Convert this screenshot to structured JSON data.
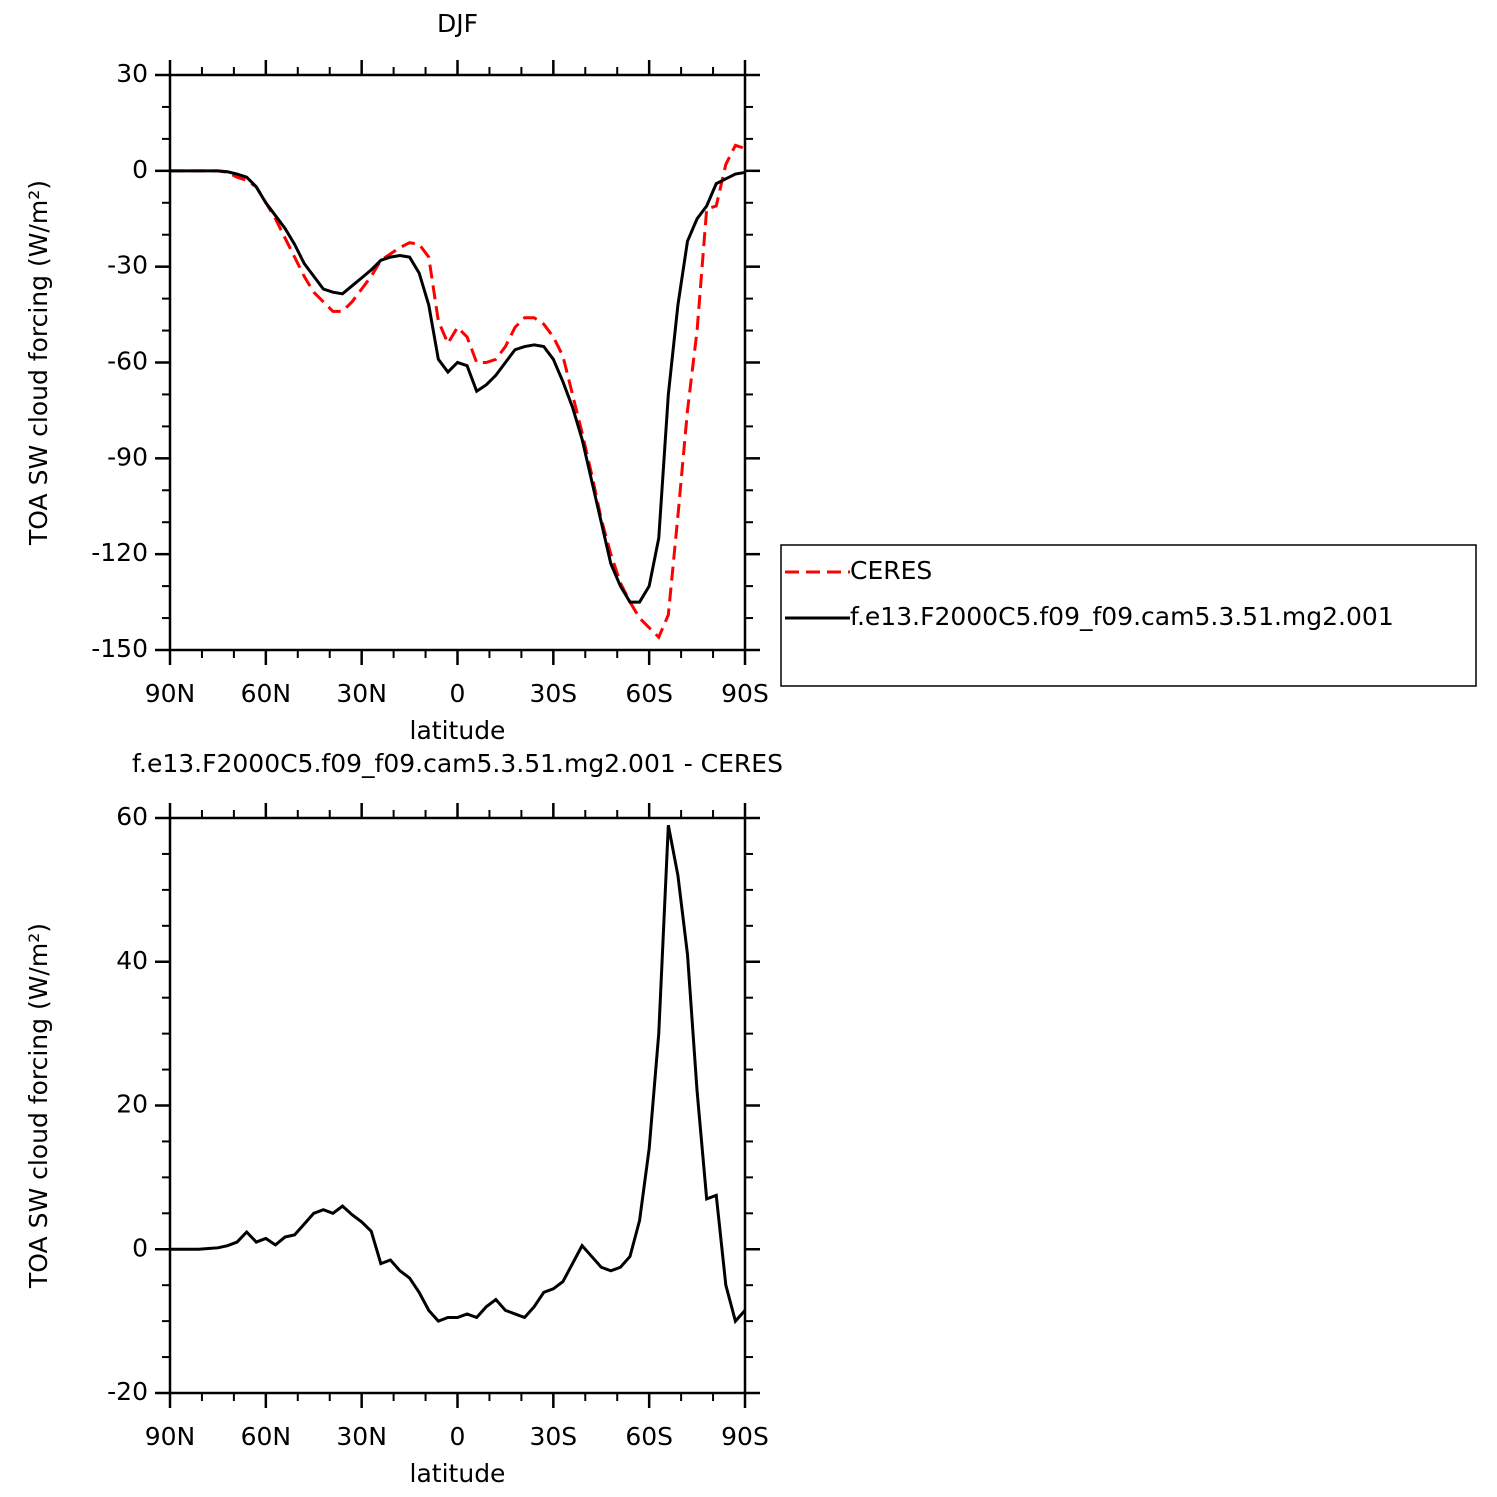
{
  "chart_data": [
    {
      "type": "line",
      "title": "DJF",
      "ylabel": "TOA SW cloud forcing (W/m²)",
      "xlabel": "latitude",
      "x": [
        90,
        87,
        84,
        81,
        78,
        75,
        72,
        69,
        66,
        63,
        60,
        57,
        54,
        51,
        48,
        45,
        42,
        39,
        36,
        33,
        30,
        27,
        24,
        21,
        18,
        15,
        12,
        9,
        6,
        3,
        0,
        -3,
        -6,
        -9,
        -12,
        -15,
        -18,
        -21,
        -24,
        -27,
        -30,
        -33,
        -36,
        -39,
        -42,
        -45,
        -48,
        -51,
        -54,
        -57,
        -60,
        -63,
        -66,
        -69,
        -72,
        -75,
        -78,
        -81,
        -84,
        -87,
        -90
      ],
      "series": [
        {
          "name": "CERES",
          "color": "#ff0000",
          "dash": true,
          "values": [
            0,
            0,
            0,
            0,
            0,
            0,
            -0.5,
            -2,
            -3,
            -5,
            -10,
            -15,
            -21,
            -27,
            -33,
            -38,
            -41,
            -44,
            -44,
            -41,
            -37,
            -33,
            -28,
            -26,
            -24,
            -22.5,
            -23,
            -27,
            -47,
            -54,
            -49,
            -52,
            -60,
            -60,
            -59,
            -55,
            -49,
            -46,
            -46,
            -48,
            -52,
            -58,
            -70,
            -82,
            -95,
            -109,
            -120,
            -129,
            -135,
            -140,
            -143,
            -146,
            -139,
            -108,
            -75,
            -50,
            -12,
            -11,
            2,
            8,
            7
          ]
        },
        {
          "name": "f.e13.F2000C5.f09_f09.cam5.3.51.mg2.001",
          "color": "#000000",
          "dash": false,
          "values": [
            0,
            0,
            0,
            0,
            0,
            0,
            -0.3,
            -1,
            -2,
            -5,
            -10,
            -14,
            -18,
            -23,
            -29,
            -33,
            -37,
            -38,
            -38.5,
            -36,
            -33.5,
            -31,
            -28,
            -27,
            -26.5,
            -27,
            -32,
            -42,
            -59,
            -63,
            -60,
            -61,
            -69,
            -67,
            -64,
            -60,
            -56,
            -55,
            -54.5,
            -55,
            -59,
            -66,
            -74,
            -84,
            -97,
            -110,
            -123,
            -130,
            -135,
            -135,
            -130,
            -115,
            -70,
            -42,
            -22,
            -15,
            -11,
            -4,
            -2.5,
            -1,
            -0.5
          ]
        }
      ],
      "xlim": [
        90,
        -90
      ],
      "xticks": [
        {
          "value": 90,
          "label": "90N"
        },
        {
          "value": 60,
          "label": "60N"
        },
        {
          "value": 30,
          "label": "30N"
        },
        0,
        {
          "value": -30,
          "label": "30S"
        },
        {
          "value": -60,
          "label": "60S"
        },
        {
          "value": -90,
          "label": "90S"
        }
      ],
      "ylim": [
        -150,
        30
      ],
      "yticks": [
        30,
        0,
        -30,
        -60,
        -90,
        -120,
        -150
      ],
      "legend": "right"
    },
    {
      "type": "line",
      "title": "f.e13.F2000C5.f09_f09.cam5.3.51.mg2.001 - CERES",
      "ylabel": "TOA SW cloud forcing (W/m²)",
      "xlabel": "latitude",
      "x": [
        90,
        87,
        84,
        81,
        78,
        75,
        72,
        69,
        66,
        63,
        60,
        57,
        54,
        51,
        48,
        45,
        42,
        39,
        36,
        33,
        30,
        27,
        24,
        21,
        18,
        15,
        12,
        9,
        6,
        3,
        0,
        -3,
        -6,
        -9,
        -12,
        -15,
        -18,
        -21,
        -24,
        -27,
        -30,
        -33,
        -36,
        -39,
        -42,
        -45,
        -48,
        -51,
        -54,
        -57,
        -60,
        -63,
        -66,
        -69,
        -72,
        -75,
        -78,
        -81,
        -84,
        -87,
        -90
      ],
      "values": [
        0,
        0,
        0,
        0,
        0.1,
        0.2,
        0.5,
        1,
        2.4,
        1,
        1.5,
        0.6,
        1.7,
        2,
        3.5,
        5,
        5.5,
        5,
        6,
        4.8,
        3.8,
        2.5,
        -2,
        -1.5,
        -3,
        -4,
        -6,
        -8.5,
        -10,
        -9.5,
        -9.5,
        -9,
        -9.5,
        -8,
        -7,
        -8.5,
        -9,
        -9.5,
        -8,
        -6,
        -5.5,
        -4.5,
        -2,
        0.5,
        -1,
        -2.5,
        -3,
        -2.5,
        -1,
        4,
        14,
        30,
        59,
        52,
        41,
        22,
        7,
        7.5,
        -5,
        -10,
        -8.5
      ],
      "color": "#000000",
      "xlim": [
        90,
        -90
      ],
      "xticks": [
        {
          "value": 90,
          "label": "90N"
        },
        {
          "value": 60,
          "label": "60N"
        },
        {
          "value": 30,
          "label": "30N"
        },
        0,
        {
          "value": -30,
          "label": "30S"
        },
        {
          "value": -60,
          "label": "60S"
        },
        {
          "value": -90,
          "label": "90S"
        }
      ],
      "ylim": [
        -20,
        60
      ],
      "yticks": [
        60,
        40,
        20,
        0,
        -20
      ]
    }
  ]
}
